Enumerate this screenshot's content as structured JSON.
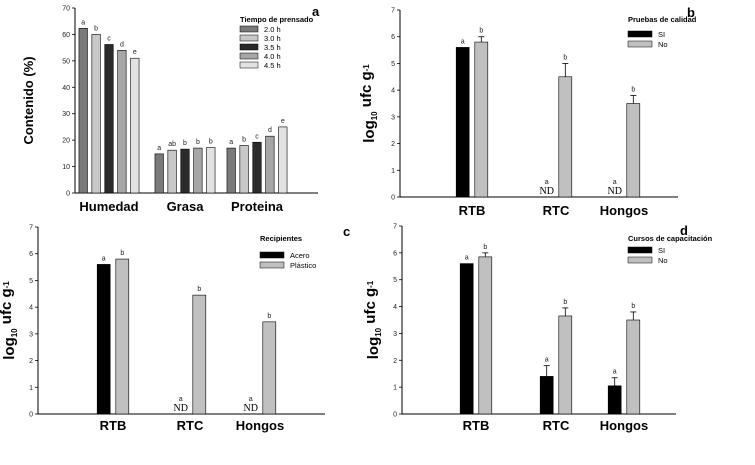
{
  "chart_data": [
    {
      "panel": "a",
      "type": "bar",
      "ylabel": "Contenido (%)",
      "ylim": [
        0,
        70
      ],
      "yticks": [
        0,
        10,
        20,
        30,
        40,
        50,
        60,
        70
      ],
      "categories": [
        "Humedad",
        "Grasa",
        "Proteina"
      ],
      "legend_title": "Tiempo de prensado",
      "legend_position": "top-right",
      "series": [
        {
          "name": "2.0 h",
          "color": "#7a7a7a",
          "values": [
            62.3,
            14.8,
            17.0
          ],
          "letters": [
            "a",
            "a",
            "a"
          ]
        },
        {
          "name": "3.0 h",
          "color": "#c8c8c8",
          "values": [
            60.0,
            16.2,
            18.0
          ],
          "letters": [
            "b",
            "ab",
            "b"
          ]
        },
        {
          "name": "3.5 h",
          "color": "#2b2b2b",
          "values": [
            56.2,
            16.6,
            19.2
          ],
          "letters": [
            "c",
            "b",
            "c"
          ]
        },
        {
          "name": "4.0 h",
          "color": "#a6a6a6",
          "values": [
            54.0,
            17.0,
            21.5
          ],
          "letters": [
            "d",
            "b",
            "d"
          ]
        },
        {
          "name": "4.5 h",
          "color": "#e2e2e2",
          "values": [
            51.0,
            17.2,
            25.0
          ],
          "letters": [
            "e",
            "b",
            "e"
          ]
        }
      ]
    },
    {
      "panel": "b",
      "type": "bar",
      "ylabel": "log10 ufc g-1",
      "ylim": [
        0,
        7
      ],
      "yticks": [
        0,
        1,
        2,
        3,
        4,
        5,
        6,
        7
      ],
      "categories": [
        "RTB",
        "RTC",
        "Hongos"
      ],
      "legend_title": "Pruebas de calidad",
      "legend_position": "top-right",
      "series": [
        {
          "name": "SI",
          "color": "#000000",
          "values": [
            5.6,
            null,
            null
          ],
          "letters": [
            "a",
            "a",
            "a"
          ],
          "nd": [
            false,
            true,
            true
          ]
        },
        {
          "name": "No",
          "color": "#c0c0c0",
          "values": [
            5.8,
            4.5,
            3.5
          ],
          "errors": [
            0.2,
            0.5,
            0.3
          ],
          "letters": [
            "b",
            "b",
            "b"
          ]
        }
      ]
    },
    {
      "panel": "c",
      "type": "bar",
      "ylabel": "log10 ufc g-1",
      "ylim": [
        0,
        7
      ],
      "yticks": [
        0,
        1,
        2,
        3,
        4,
        5,
        6,
        7
      ],
      "categories": [
        "RTB",
        "RTC",
        "Hongos"
      ],
      "legend_title": "Recipientes",
      "legend_position": "top-right",
      "series": [
        {
          "name": "Acero",
          "color": "#000000",
          "values": [
            5.6,
            null,
            null
          ],
          "letters": [
            "a",
            "a",
            "a"
          ],
          "nd": [
            false,
            true,
            true
          ]
        },
        {
          "name": "Plástico",
          "color": "#c0c0c0",
          "values": [
            5.8,
            4.45,
            3.45
          ],
          "letters": [
            "b",
            "b",
            "b"
          ]
        }
      ]
    },
    {
      "panel": "d",
      "type": "bar",
      "ylabel": "log10 ufc g-1",
      "ylim": [
        0,
        7
      ],
      "yticks": [
        0,
        1,
        2,
        3,
        4,
        5,
        6,
        7
      ],
      "categories": [
        "RTB",
        "RTC",
        "Hongos"
      ],
      "legend_title": "Cursos de capacitación",
      "legend_position": "top-right",
      "series": [
        {
          "name": "SI",
          "color": "#000000",
          "values": [
            5.6,
            1.4,
            1.05
          ],
          "errors": [
            0,
            0.4,
            0.3
          ],
          "letters": [
            "a",
            "a",
            "a"
          ]
        },
        {
          "name": "No",
          "color": "#c0c0c0",
          "values": [
            5.85,
            3.65,
            3.5
          ],
          "errors": [
            0.15,
            0.3,
            0.3
          ],
          "letters": [
            "b",
            "b",
            "b"
          ]
        }
      ]
    }
  ],
  "nd_label": "ND"
}
